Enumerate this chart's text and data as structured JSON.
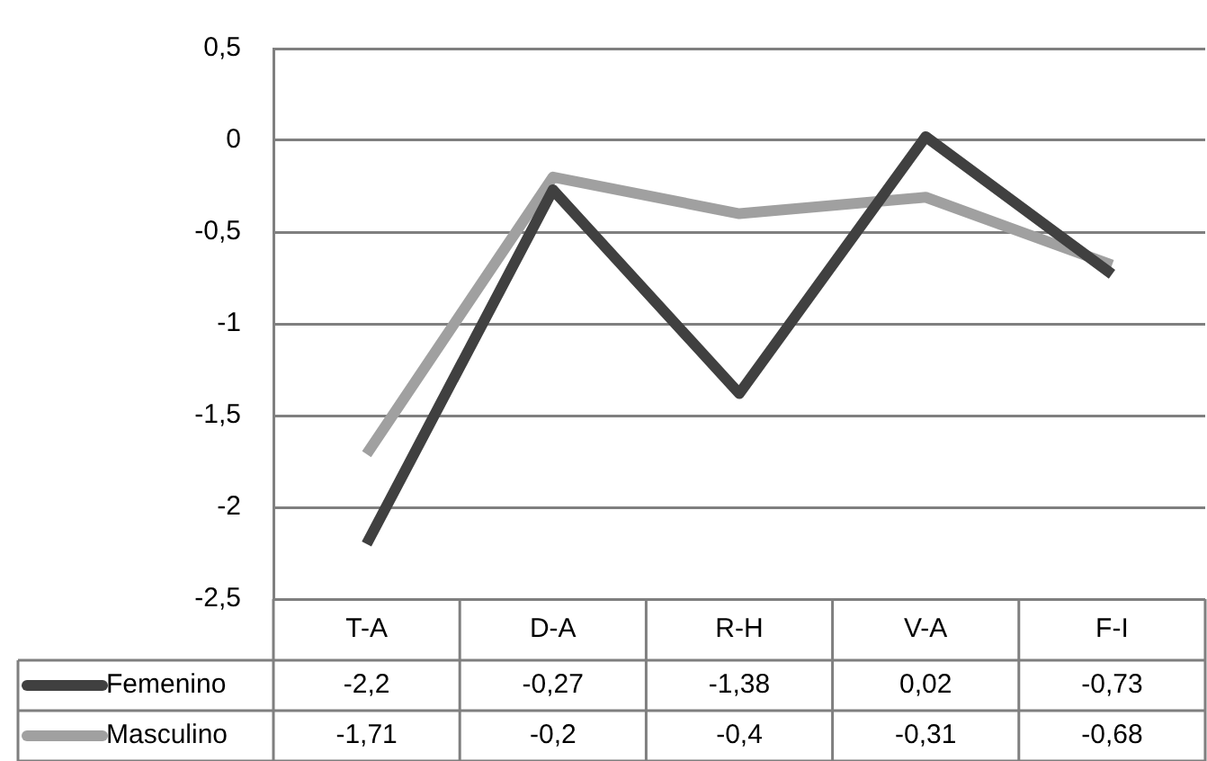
{
  "chart_data": {
    "type": "line",
    "categories": [
      "T-A",
      "D-A",
      "R-H",
      "V-A",
      "F-I"
    ],
    "series": [
      {
        "name": "Femenino",
        "color": "#404040",
        "values": [
          -2.2,
          -0.27,
          -1.38,
          0.02,
          -0.73
        ],
        "value_labels": [
          "-2,2",
          "-0,27",
          "-1,38",
          "0,02",
          "-0,73"
        ]
      },
      {
        "name": "Masculino",
        "color": "#a0a0a0",
        "values": [
          -1.71,
          -0.2,
          -0.4,
          -0.31,
          -0.68
        ],
        "value_labels": [
          "-1,71",
          "-0,2",
          "-0,4",
          "-0,31",
          "-0,68"
        ]
      }
    ],
    "ylim": [
      -2.5,
      0.5
    ],
    "yticks": [
      {
        "value": 0.5,
        "label": "0,5"
      },
      0,
      {
        "value": -0.5,
        "label": "-0,5"
      },
      -1,
      {
        "value": -1.5,
        "label": "-1,5"
      },
      -2,
      {
        "value": -2.5,
        "label": "-2,5"
      }
    ],
    "grid": "y",
    "legend": "bottom",
    "marker": "none",
    "line_style": "solid"
  }
}
